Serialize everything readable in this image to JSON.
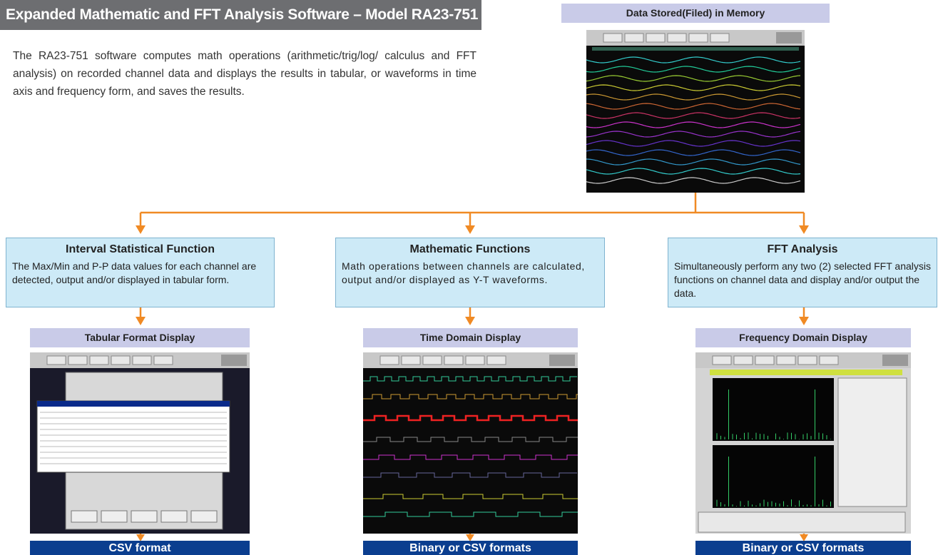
{
  "header": {
    "title": "Expanded Mathematic and FFT Analysis Software – Model RA23-751"
  },
  "intro": "The RA23-751 software computes math operations (arithmetic/trig/log/ calculus and FFT analysis) on recorded channel data and displays the results in tabular, or waveforms in time axis and frequency form, and saves the results.",
  "source": {
    "label": "Data Stored(Filed) in Memory"
  },
  "branches": [
    {
      "title": "Interval Statistical Function",
      "description": "The Max/Min and P-P data values for each channel are detected, output and/or displayed in tabular form.",
      "display": "Tabular Format Display",
      "output": "CSV format"
    },
    {
      "title": "Mathematic Functions",
      "description": "Math operations between channels are calculated, output and/or displayed as Y-T waveforms.",
      "display": "Time Domain Display",
      "output": "Binary or CSV formats"
    },
    {
      "title": "FFT Analysis",
      "description": "Simultaneously perform any two (2) selected FFT analysis functions on channel data and display and/or output the data.",
      "display": "Frequency Domain Display",
      "output": "Binary or CSV formats"
    }
  ]
}
